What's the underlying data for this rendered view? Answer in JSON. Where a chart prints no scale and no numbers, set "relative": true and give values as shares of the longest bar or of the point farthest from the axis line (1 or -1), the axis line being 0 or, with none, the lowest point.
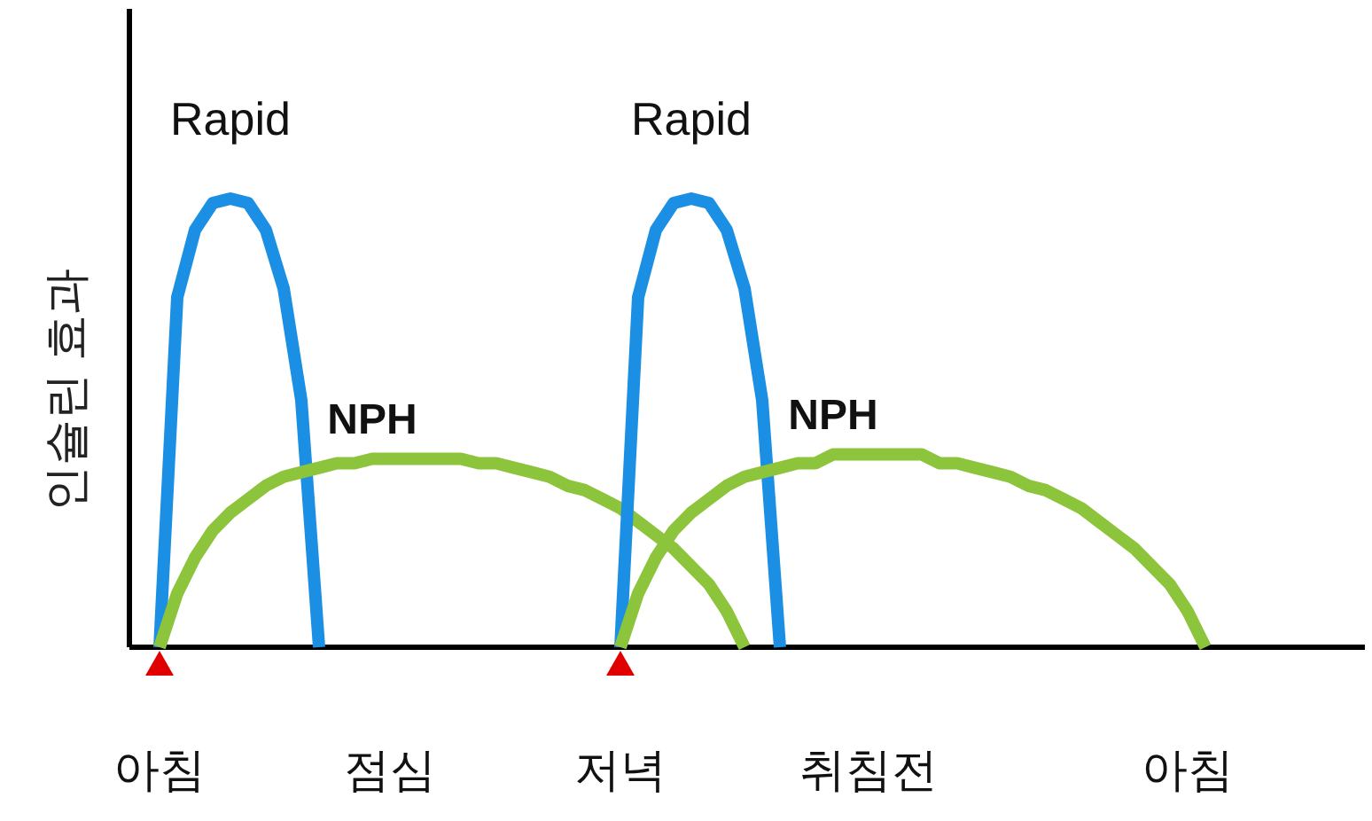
{
  "chart_data": {
    "type": "line",
    "relative": true,
    "ylabel": "인슐린 효과",
    "categories": [
      "아침",
      null,
      null,
      null,
      null,
      null,
      null,
      null,
      null,
      null,
      null,
      null,
      null,
      "점심",
      null,
      null,
      null,
      null,
      null,
      null,
      null,
      null,
      null,
      null,
      null,
      null,
      "저녁",
      null,
      null,
      null,
      null,
      null,
      null,
      null,
      null,
      null,
      null,
      null,
      null,
      null,
      "취침전",
      null,
      null,
      null,
      null,
      null,
      null,
      null,
      null,
      null,
      null,
      null,
      null,
      null,
      null,
      null,
      null,
      null,
      "아침",
      null,
      null,
      null,
      null,
      null,
      null,
      null,
      null,
      null,
      null
    ],
    "series": [
      {
        "name": "Rapid",
        "color": "#1b8fe3",
        "values": [
          0,
          0.78,
          0.93,
          0.99,
          1,
          0.99,
          0.93,
          0.8,
          0.55,
          0,
          null,
          null,
          null,
          null,
          null,
          null,
          null,
          null,
          null,
          null,
          null,
          null,
          null,
          null,
          null,
          null,
          null,
          null,
          null,
          null,
          null,
          null,
          null,
          null,
          null,
          null,
          null,
          null,
          null,
          null,
          null,
          null,
          null,
          null,
          null,
          null,
          null,
          null,
          null,
          null,
          null,
          null,
          null,
          null,
          null,
          null,
          null,
          null,
          null,
          null,
          null,
          null,
          null,
          null,
          null,
          null,
          null,
          null,
          null
        ]
      },
      {
        "name": "NPH",
        "color": "#8cc43c",
        "values": [
          0,
          0.12,
          0.2,
          0.26,
          0.3,
          0.33,
          0.36,
          0.38,
          0.39,
          0.4,
          0.41,
          0.41,
          0.42,
          0.42,
          0.42,
          0.42,
          0.42,
          0.42,
          0.41,
          0.41,
          0.4,
          0.39,
          0.38,
          0.36,
          0.35,
          0.33,
          0.31,
          0.28,
          0.25,
          0.22,
          0.18,
          0.14,
          0.08,
          0,
          null,
          null,
          null,
          null,
          null,
          null,
          null,
          null,
          null,
          null,
          null,
          null,
          null,
          null,
          null,
          null,
          null,
          null,
          null,
          null,
          null,
          null,
          null,
          null,
          null,
          null,
          null,
          null,
          null,
          null,
          null,
          null,
          null,
          null,
          null
        ]
      },
      {
        "name": "Rapid",
        "color": "#1b8fe3",
        "values": [
          null,
          null,
          null,
          null,
          null,
          null,
          null,
          null,
          null,
          null,
          null,
          null,
          null,
          null,
          null,
          null,
          null,
          null,
          null,
          null,
          null,
          null,
          null,
          null,
          null,
          null,
          0,
          0.78,
          0.93,
          0.99,
          1,
          0.99,
          0.93,
          0.8,
          0.55,
          0,
          null,
          null,
          null,
          null,
          null,
          null,
          null,
          null,
          null,
          null,
          null,
          null,
          null,
          null,
          null,
          null,
          null,
          null,
          null,
          null,
          null,
          null,
          null,
          null,
          null,
          null,
          null,
          null,
          null,
          null,
          null,
          null,
          null
        ]
      },
      {
        "name": "NPH",
        "color": "#8cc43c",
        "values": [
          null,
          null,
          null,
          null,
          null,
          null,
          null,
          null,
          null,
          null,
          null,
          null,
          null,
          null,
          null,
          null,
          null,
          null,
          null,
          null,
          null,
          null,
          null,
          null,
          null,
          null,
          0,
          0.12,
          0.2,
          0.26,
          0.3,
          0.33,
          0.36,
          0.38,
          0.39,
          0.4,
          0.41,
          0.41,
          0.43,
          0.43,
          0.43,
          0.43,
          0.43,
          0.43,
          0.41,
          0.41,
          0.4,
          0.39,
          0.38,
          0.36,
          0.35,
          0.33,
          0.31,
          0.28,
          0.25,
          0.22,
          0.18,
          0.14,
          0.08,
          0,
          null,
          null,
          null,
          null,
          null,
          null,
          null,
          null,
          null
        ]
      }
    ]
  }
}
